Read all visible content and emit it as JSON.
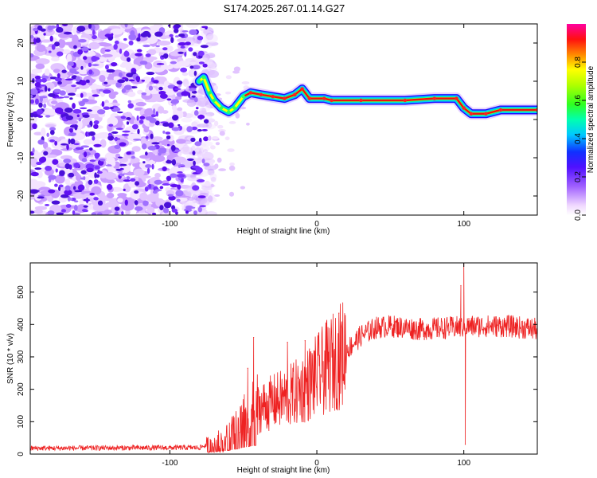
{
  "title": "S174.2025.267.01.14.G27",
  "chart_data": [
    {
      "type": "heatmap",
      "name": "spectrogram",
      "xlabel": "Height of straight line (km)",
      "ylabel": "Frequency (Hz)",
      "xlim": [
        -195,
        150
      ],
      "ylim": [
        -25,
        25
      ],
      "x_ticks": [
        -100,
        0,
        100
      ],
      "x_tick_labels": [
        "-100",
        "0",
        "100"
      ],
      "y_ticks": [
        -20,
        -10,
        0,
        10,
        20
      ],
      "y_tick_labels": [
        "-20",
        "-10",
        "0",
        "10",
        "20"
      ],
      "noise_region_x": [
        -195,
        -75
      ],
      "ridge": [
        {
          "x": -80,
          "f": 10
        },
        {
          "x": -77,
          "f": 11
        },
        {
          "x": -73,
          "f": 7
        },
        {
          "x": -70,
          "f": 5
        },
        {
          "x": -65,
          "f": 3
        },
        {
          "x": -60,
          "f": 2
        },
        {
          "x": -56,
          "f": 3
        },
        {
          "x": -50,
          "f": 6
        },
        {
          "x": -45,
          "f": 7
        },
        {
          "x": -38,
          "f": 6.5
        },
        {
          "x": -30,
          "f": 6
        },
        {
          "x": -22,
          "f": 5.5
        },
        {
          "x": -15,
          "f": 6.5
        },
        {
          "x": -10,
          "f": 8
        },
        {
          "x": -5,
          "f": 5.5
        },
        {
          "x": 5,
          "f": 5.5
        },
        {
          "x": 10,
          "f": 5
        },
        {
          "x": 30,
          "f": 5
        },
        {
          "x": 60,
          "f": 5
        },
        {
          "x": 80,
          "f": 5.5
        },
        {
          "x": 95,
          "f": 5.5
        },
        {
          "x": 100,
          "f": 3
        },
        {
          "x": 105,
          "f": 1.5
        },
        {
          "x": 115,
          "f": 1.5
        },
        {
          "x": 125,
          "f": 2.5
        },
        {
          "x": 150,
          "f": 2.5
        }
      ],
      "colorbar": {
        "label": "Normalized spectral amplitude",
        "range": [
          0,
          1
        ],
        "ticks": [
          0,
          0.2,
          0.4,
          0.6,
          0.8
        ],
        "tick_labels": [
          "0.0",
          "0.2",
          "0.4",
          "0.6",
          "0.8"
        ]
      }
    },
    {
      "type": "line",
      "name": "snr",
      "xlabel": "Height of straight line (km)",
      "ylabel": "SNR (10 * v/v)",
      "xlim": [
        -195,
        150
      ],
      "ylim": [
        0,
        590
      ],
      "x_ticks": [
        -100,
        0,
        100
      ],
      "x_tick_labels": [
        "-100",
        "0",
        "100"
      ],
      "y_ticks": [
        0,
        100,
        200,
        300,
        400,
        500
      ],
      "y_tick_labels": [
        "0",
        "100",
        "200",
        "300",
        "400",
        "500"
      ],
      "series": [
        {
          "name": "SNR",
          "color": "#ee2222",
          "trend": [
            {
              "x": -195,
              "y": 18
            },
            {
              "x": -80,
              "y": 20
            },
            {
              "x": -70,
              "y": 35
            },
            {
              "x": -60,
              "y": 55
            },
            {
              "x": -50,
              "y": 100
            },
            {
              "x": -40,
              "y": 140
            },
            {
              "x": -30,
              "y": 160
            },
            {
              "x": -20,
              "y": 175
            },
            {
              "x": -10,
              "y": 200
            },
            {
              "x": 0,
              "y": 240
            },
            {
              "x": 10,
              "y": 280
            },
            {
              "x": 20,
              "y": 320
            },
            {
              "x": 30,
              "y": 365
            },
            {
              "x": 40,
              "y": 390
            },
            {
              "x": 50,
              "y": 395
            },
            {
              "x": 70,
              "y": 385
            },
            {
              "x": 90,
              "y": 390
            },
            {
              "x": 110,
              "y": 395
            },
            {
              "x": 130,
              "y": 395
            },
            {
              "x": 150,
              "y": 385
            }
          ],
          "spikes": [
            {
              "x": -43,
              "y": 360
            },
            {
              "x": -47,
              "y": 265
            },
            {
              "x": -20,
              "y": 345
            },
            {
              "x": -8,
              "y": 350
            },
            {
              "x": 15,
              "y": 435
            },
            {
              "x": 98,
              "y": 520
            },
            {
              "x": 100,
              "y": 590
            },
            {
              "x": 101,
              "y": 30
            },
            {
              "x": 103,
              "y": 410
            }
          ]
        }
      ]
    }
  ]
}
